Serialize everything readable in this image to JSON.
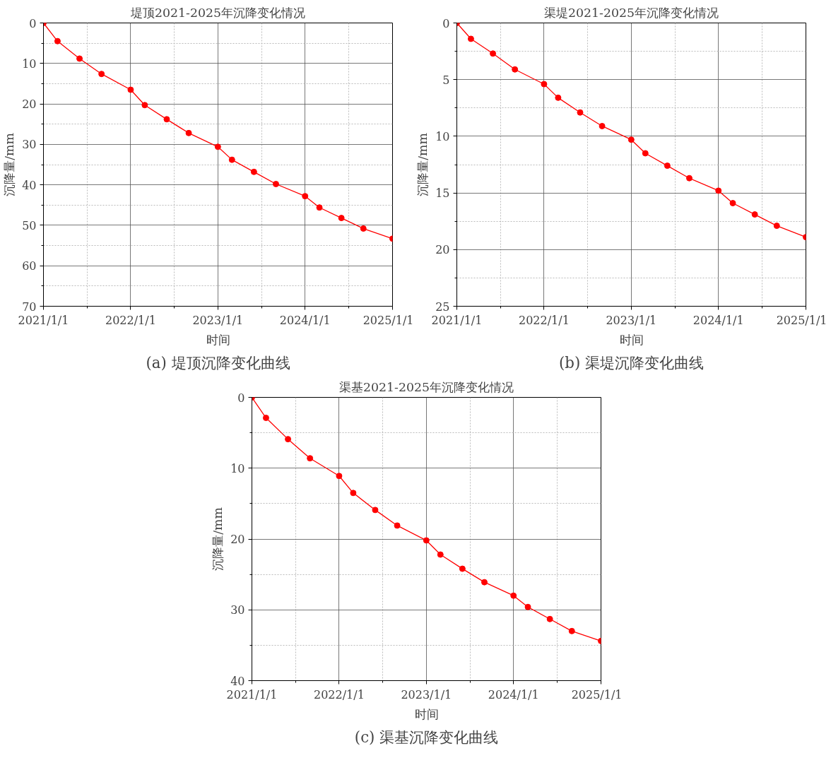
{
  "chart_data": [
    {
      "type": "line",
      "title": "堤顶2021-2025年沉降变化情况",
      "xlabel": "时间",
      "ylabel": "沉降量/mm",
      "annotations": [
        "(a) 堤顶沉降变化曲线"
      ],
      "x": [
        "2021-01-01",
        "2021-03-01",
        "2021-06-01",
        "2021-09-01",
        "2022-01-01",
        "2022-03-01",
        "2022-06-01",
        "2022-09-01",
        "2023-01-01",
        "2023-03-01",
        "2023-06-01",
        "2023-09-01",
        "2024-01-01",
        "2024-03-01",
        "2024-06-01",
        "2024-09-01",
        "2025-01-01"
      ],
      "series": [
        {
          "color": "#ff0000",
          "values": [
            0,
            4.5,
            8.8,
            12.6,
            16.5,
            20.3,
            23.8,
            27.2,
            30.6,
            33.8,
            36.8,
            39.8,
            42.8,
            45.6,
            48.2,
            50.8,
            53.3
          ]
        }
      ],
      "xlim": [
        "2021-01-01",
        "2025-01-01"
      ],
      "xticks": [
        {
          "value": "2021-01-01",
          "label": "2021/1/1"
        },
        {
          "value": "2022-01-01",
          "label": "2022/1/1"
        },
        {
          "value": "2023-01-01",
          "label": "2023/1/1"
        },
        {
          "value": "2024-01-01",
          "label": "2024/1/1"
        },
        {
          "value": "2025-01-01",
          "label": "2025/1/1"
        }
      ],
      "ylim": [
        70,
        0
      ],
      "yticks": [
        0,
        10,
        20,
        30,
        40,
        50,
        60,
        70
      ],
      "grid": true,
      "marker": "circle",
      "line_style": "solid"
    },
    {
      "type": "line",
      "title": "渠堤2021-2025年沉降变化情况",
      "xlabel": "时间",
      "ylabel": "沉降量/mm",
      "annotations": [
        "(b) 渠堤沉降变化曲线"
      ],
      "x": [
        "2021-01-01",
        "2021-03-01",
        "2021-06-01",
        "2021-09-01",
        "2022-01-01",
        "2022-03-01",
        "2022-06-01",
        "2022-09-01",
        "2023-01-01",
        "2023-03-01",
        "2023-06-01",
        "2023-09-01",
        "2024-01-01",
        "2024-03-01",
        "2024-06-01",
        "2024-09-01",
        "2025-01-01"
      ],
      "series": [
        {
          "color": "#ff0000",
          "values": [
            0,
            1.4,
            2.7,
            4.1,
            5.4,
            6.6,
            7.9,
            9.1,
            10.3,
            11.5,
            12.6,
            13.7,
            14.8,
            15.9,
            16.9,
            17.9,
            18.9
          ]
        }
      ],
      "xlim": [
        "2021-01-01",
        "2025-01-01"
      ],
      "xticks": [
        {
          "value": "2021-01-01",
          "label": "2021/1/1"
        },
        {
          "value": "2022-01-01",
          "label": "2022/1/1"
        },
        {
          "value": "2023-01-01",
          "label": "2023/1/1"
        },
        {
          "value": "2024-01-01",
          "label": "2024/1/1"
        },
        {
          "value": "2025-01-01",
          "label": "2025/1/1"
        }
      ],
      "ylim": [
        25,
        0
      ],
      "yticks": [
        0,
        5,
        10,
        15,
        20,
        25
      ],
      "grid": true,
      "marker": "circle",
      "line_style": "solid"
    },
    {
      "type": "line",
      "title": "渠基2021-2025年沉降变化情况",
      "xlabel": "时间",
      "ylabel": "沉降量/mm",
      "annotations": [
        "(c) 渠基沉降变化曲线"
      ],
      "x": [
        "2021-01-01",
        "2021-03-01",
        "2021-06-01",
        "2021-09-01",
        "2022-01-01",
        "2022-03-01",
        "2022-06-01",
        "2022-09-01",
        "2023-01-01",
        "2023-03-01",
        "2023-06-01",
        "2023-09-01",
        "2024-01-01",
        "2024-03-01",
        "2024-06-01",
        "2024-09-01",
        "2025-01-01"
      ],
      "series": [
        {
          "color": "#ff0000",
          "values": [
            0,
            2.9,
            5.9,
            8.6,
            11.1,
            13.5,
            15.9,
            18.1,
            20.2,
            22.2,
            24.2,
            26.1,
            28.0,
            29.6,
            31.3,
            33.0,
            34.4
          ]
        }
      ],
      "xlim": [
        "2021-01-01",
        "2025-01-01"
      ],
      "xticks": [
        {
          "value": "2021-01-01",
          "label": "2021/1/1"
        },
        {
          "value": "2022-01-01",
          "label": "2022/1/1"
        },
        {
          "value": "2023-01-01",
          "label": "2023/1/1"
        },
        {
          "value": "2024-01-01",
          "label": "2024/1/1"
        },
        {
          "value": "2025-01-01",
          "label": "2025/1/1"
        }
      ],
      "ylim": [
        40,
        0
      ],
      "yticks": [
        0,
        10,
        20,
        30,
        40
      ],
      "grid": true,
      "marker": "circle",
      "line_style": "solid"
    }
  ]
}
